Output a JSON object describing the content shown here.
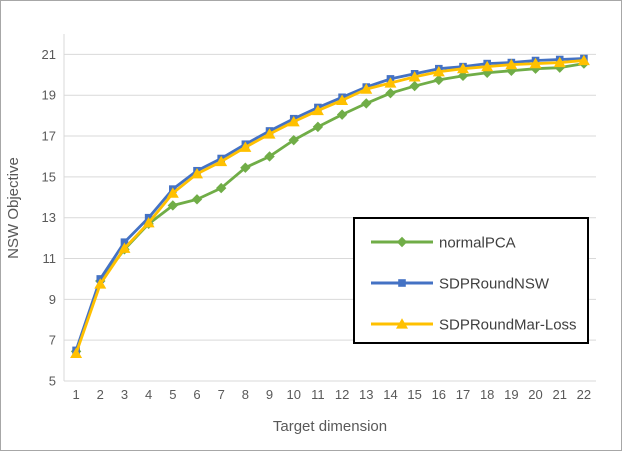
{
  "window": {
    "background": "#ffffff",
    "border_color": "#a7a7a7"
  },
  "chart_data": {
    "type": "line",
    "title": "",
    "xlabel": "Target dimension",
    "ylabel": "NSW Objective",
    "categories": [
      1,
      2,
      3,
      4,
      5,
      6,
      7,
      8,
      9,
      10,
      11,
      12,
      13,
      14,
      15,
      16,
      17,
      18,
      19,
      20,
      21,
      22
    ],
    "ylim": [
      5,
      22
    ],
    "yticks": [
      5,
      7,
      9,
      11,
      13,
      15,
      17,
      19,
      21
    ],
    "grid": "horizontal",
    "gridline_color": "#d9d9d9",
    "axis_line_color": "#d9d9d9",
    "tick_text_color": "#595959",
    "legend_position": "inside-lower-right",
    "legend_border_color": "#000000",
    "legend_background": "#ffffff",
    "legend_text_color": "#3f3f3f",
    "series": [
      {
        "name": "normalPCA",
        "color": "#70AD47",
        "marker": "diamond",
        "values": [
          6.45,
          9.9,
          11.45,
          12.7,
          13.6,
          13.9,
          14.45,
          15.45,
          16.0,
          16.8,
          17.45,
          18.05,
          18.6,
          19.1,
          19.45,
          19.75,
          19.95,
          20.1,
          20.2,
          20.3,
          20.35,
          20.55
        ]
      },
      {
        "name": "SDPRoundNSW",
        "color": "#4472C4",
        "marker": "square",
        "values": [
          6.5,
          10.0,
          11.8,
          13.0,
          14.4,
          15.3,
          15.9,
          16.6,
          17.25,
          17.85,
          18.4,
          18.9,
          19.4,
          19.8,
          20.05,
          20.3,
          20.4,
          20.55,
          20.6,
          20.7,
          20.75,
          20.8
        ]
      },
      {
        "name": "SDPRoundMar-Loss",
        "color": "#FFC000",
        "marker": "triangle",
        "values": [
          6.35,
          9.75,
          11.5,
          12.75,
          14.2,
          15.15,
          15.75,
          16.45,
          17.1,
          17.7,
          18.25,
          18.75,
          19.3,
          19.6,
          19.9,
          20.15,
          20.3,
          20.4,
          20.5,
          20.55,
          20.6,
          20.7
        ]
      }
    ]
  }
}
